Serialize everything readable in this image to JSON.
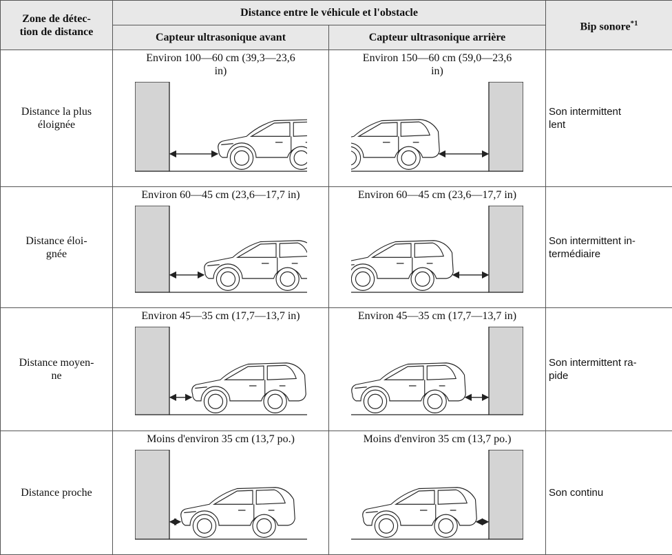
{
  "header": {
    "zone": "Zone de détec-\ntion de distance",
    "distance": "Distance entre le véhicule et l'obstacle",
    "front": "Capteur ultrasonique avant",
    "rear": "Capteur ultrasonique arrière",
    "beep": "Bip sonore",
    "beep_note": "*1"
  },
  "rows": [
    {
      "zone": "Distance la plus\néloignée",
      "front": "Environ 100—60 cm (39,3—23,6\nin)",
      "rear": "Environ 150—60 cm (59,0—23,6\nin)",
      "sound": "Son intermittent\nlent"
    },
    {
      "zone": "Distance éloi-\ngnée",
      "front": "Environ 60—45 cm (23,6—17,7 in)",
      "rear": "Environ 60—45 cm (23,6—17,7 in)",
      "sound": "Son intermittent in-\ntermédiaire"
    },
    {
      "zone": "Distance moyen-\nne",
      "front": "Environ 45—35 cm (17,7—13,7 in)",
      "rear": "Environ 45—35 cm (17,7—13,7 in)",
      "sound": "Son intermittent ra-\npide"
    },
    {
      "zone": "Distance proche",
      "front": "Moins d'environ 35 cm (13,7 po.)",
      "rear": "Moins d'environ 35 cm (13,7 po.)",
      "sound": "Son continu"
    }
  ]
}
